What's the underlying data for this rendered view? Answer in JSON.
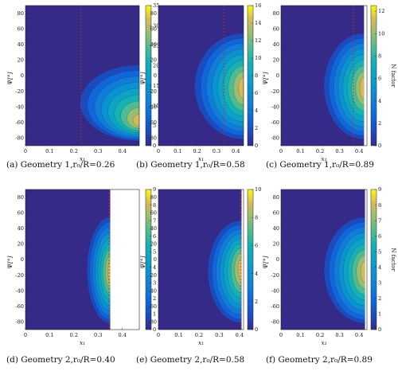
{
  "figure": {
    "captions": [
      "(a) Geometry 1,r₀/R=0.26",
      "(b) Geometry 1,r₀/R=0.58",
      "(c) Geometry 1,r₀/R=0.89",
      "(d) Geometry 2,r₀/R=0.40",
      "(e) Geometry 2,r₀/R=0.58",
      "(f) Geometry 2,r₀/R=0.89"
    ]
  },
  "chart_data": [
    {
      "type": "heatmap",
      "xlabel": "x₁",
      "ylabel": "Ψ[°]",
      "colorbar_label": "",
      "xlim": [
        0,
        0.47
      ],
      "ylim": [
        -90,
        90
      ],
      "x_ticks": [
        0,
        0.1,
        0.2,
        0.3,
        0.4
      ],
      "y_ticks": [
        80,
        60,
        40,
        20,
        0,
        -20,
        -40,
        -60,
        -80
      ],
      "colorbar_range": [
        0,
        35
      ],
      "colorbar_ticks": [
        0,
        5,
        10,
        15,
        20,
        25,
        30,
        35
      ],
      "dashed_line_x": 0.23,
      "front_x": 0.19,
      "top_psi": 20,
      "peak_psi": -58,
      "plot_x_max": 0.47
    },
    {
      "type": "heatmap",
      "xlabel": "x₁",
      "ylabel": "Ψ[°]",
      "colorbar_label": "",
      "xlim": [
        0,
        0.44
      ],
      "ylim": [
        -90,
        90
      ],
      "x_ticks": [
        0,
        0.1,
        0.2,
        0.3,
        0.4
      ],
      "y_ticks": [
        80,
        60,
        40,
        20,
        0,
        -20,
        -40,
        -60,
        -80
      ],
      "colorbar_range": [
        0,
        16
      ],
      "colorbar_ticks": [
        0,
        2,
        4,
        6,
        8,
        10,
        12,
        14,
        16
      ],
      "dashed_line_x": 0.34,
      "front_x": 0.15,
      "top_psi": 60,
      "peak_psi": -10,
      "plot_x_max": 0.44
    },
    {
      "type": "heatmap",
      "xlabel": "x₁",
      "ylabel": "Ψ[°]",
      "colorbar_label": "N factor",
      "xlim": [
        0,
        0.44
      ],
      "ylim": [
        -90,
        90
      ],
      "x_ticks": [
        0,
        0.1,
        0.2,
        0.3,
        0.4
      ],
      "y_ticks": [
        80,
        60,
        40,
        20,
        0,
        -20,
        -40,
        -60,
        -80
      ],
      "colorbar_range": [
        0,
        12.5
      ],
      "colorbar_ticks": [
        0,
        2,
        4,
        6,
        8,
        10,
        12
      ],
      "dashed_line_x": 0.37,
      "front_x": 0.19,
      "top_psi": 60,
      "peak_psi": -10,
      "plot_x_max": 0.425
    },
    {
      "type": "heatmap",
      "xlabel": "x₁",
      "ylabel": "Ψ[°]",
      "colorbar_label": "",
      "xlim": [
        0,
        0.47
      ],
      "ylim": [
        -90,
        90
      ],
      "x_ticks": [
        0,
        0.1,
        0.2,
        0.3,
        0.4
      ],
      "y_ticks": [
        80,
        60,
        40,
        20,
        0,
        -20,
        -40,
        -60,
        -80
      ],
      "colorbar_range": [
        0,
        9
      ],
      "colorbar_ticks": [
        0,
        1,
        2,
        3,
        4,
        5,
        6,
        7,
        8,
        9
      ],
      "dashed_line_x": 0.345,
      "front_x": 0.24,
      "top_psi": 60,
      "peak_psi": -10,
      "plot_x_max": 0.35
    },
    {
      "type": "heatmap",
      "xlabel": "x₁",
      "ylabel": "Ψ[°]",
      "colorbar_label": "",
      "xlim": [
        0,
        0.42
      ],
      "ylim": [
        -90,
        90
      ],
      "x_ticks": [
        0,
        0.1,
        0.2,
        0.3,
        0.4
      ],
      "y_ticks": [
        80,
        60,
        40,
        20,
        0,
        -20,
        -40,
        -60,
        -80
      ],
      "colorbar_range": [
        0,
        10
      ],
      "colorbar_ticks": [
        0,
        2,
        4,
        6,
        8,
        10
      ],
      "dashed_line_x": 0.405,
      "front_x": 0.22,
      "top_psi": 55,
      "peak_psi": -5,
      "plot_x_max": 0.41
    },
    {
      "type": "heatmap",
      "xlabel": "x₁",
      "ylabel": "Ψ[°]",
      "colorbar_label": "N factor",
      "xlim": [
        0,
        0.44
      ],
      "ylim": [
        -90,
        90
      ],
      "x_ticks": [
        0,
        0.1,
        0.2,
        0.3,
        0.4
      ],
      "y_ticks": [
        80,
        60,
        40,
        20,
        0,
        -20,
        -40,
        -60,
        -80
      ],
      "colorbar_range": [
        0,
        9
      ],
      "colorbar_ticks": [
        0,
        1,
        2,
        3,
        4,
        5,
        6,
        7,
        8,
        9
      ],
      "dashed_line_x": null,
      "front_x": 0.19,
      "top_psi": 60,
      "peak_psi": -10,
      "plot_x_max": 0.43
    }
  ]
}
